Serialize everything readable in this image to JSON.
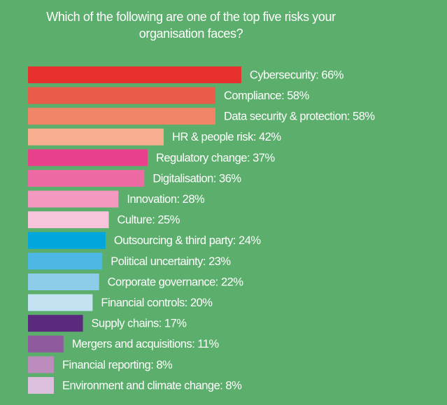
{
  "chart_data": {
    "type": "bar",
    "orientation": "horizontal",
    "title": "Which of the following are one of the top five risks your organisation faces?",
    "categories": [
      "Cybersecurity: 66%",
      "Compliance: 58%",
      "Data security & protection: 58%",
      "HR & people risk: 42%",
      "Regulatory change: 37%",
      "Digitalisation: 36%",
      "Innovation: 28%",
      "Culture: 25%",
      "Outsourcing & third party: 24%",
      "Political uncertainty: 23%",
      "Corporate governance: 22%",
      "Financial controls: 20%",
      "Supply chains: 17%",
      "Mergers and acquisitions: 11%",
      "Financial reporting: 8%",
      "Environment and climate change: 8%"
    ],
    "values": [
      66,
      58,
      58,
      42,
      37,
      36,
      28,
      25,
      24,
      23,
      22,
      20,
      17,
      11,
      8,
      8
    ],
    "colors": [
      "#e8312f",
      "#ea5b49",
      "#f08568",
      "#f6ae8e",
      "#e8408b",
      "#ee6aa4",
      "#f49ac1",
      "#f9c5dc",
      "#00a6dc",
      "#4cb8e3",
      "#8dcdea",
      "#c3e3f2",
      "#5b2a7e",
      "#8f5a9e",
      "#bc8cbd",
      "#dbbfdc"
    ]
  }
}
